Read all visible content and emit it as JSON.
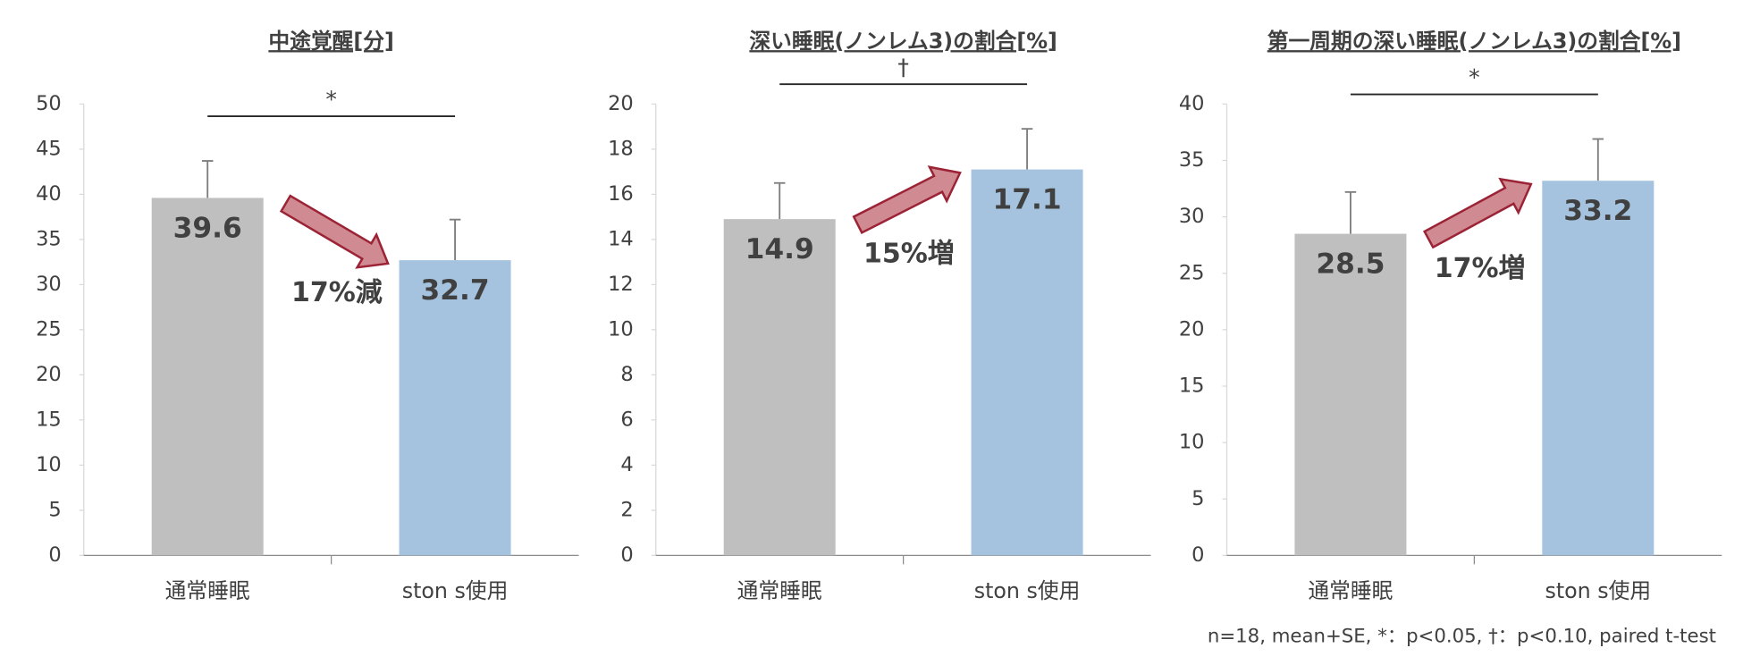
{
  "chart_data": [
    {
      "type": "bar",
      "title": "中途覚醒[分]",
      "categories": [
        "通常睡眠",
        "ston s使用"
      ],
      "values": [
        39.6,
        32.7
      ],
      "errors": [
        4.1,
        4.5
      ],
      "colors": [
        "#bfbfbf",
        "#a5c3de"
      ],
      "ylim": [
        0,
        50
      ],
      "yticks": [
        0,
        5,
        10,
        15,
        20,
        25,
        30,
        35,
        40,
        45,
        50
      ],
      "significance": "*",
      "annotation": "17%減"
    },
    {
      "type": "bar",
      "title": "深い睡眠(ノンレム3)の割合[%]",
      "categories": [
        "通常睡眠",
        "ston s使用"
      ],
      "values": [
        14.9,
        17.1
      ],
      "errors": [
        1.6,
        1.8
      ],
      "colors": [
        "#bfbfbf",
        "#a5c3de"
      ],
      "ylim": [
        0,
        20
      ],
      "yticks": [
        0,
        2,
        4,
        6,
        8,
        10,
        12,
        14,
        16,
        18,
        20
      ],
      "significance": "†",
      "annotation": "15%増"
    },
    {
      "type": "bar",
      "title": "第一周期の深い睡眠(ノンレム3)の割合[%]",
      "categories": [
        "通常睡眠",
        "ston s使用"
      ],
      "values": [
        28.5,
        33.2
      ],
      "errors": [
        3.7,
        3.7
      ],
      "colors": [
        "#bfbfbf",
        "#a5c3de"
      ],
      "ylim": [
        0,
        40
      ],
      "yticks": [
        0,
        5,
        10,
        15,
        20,
        25,
        30,
        35,
        40
      ],
      "significance": "*",
      "annotation": "17%増"
    }
  ],
  "footnote": "n=18, mean+SE, *：p<0.05, †：p<0.10, paired t-test"
}
